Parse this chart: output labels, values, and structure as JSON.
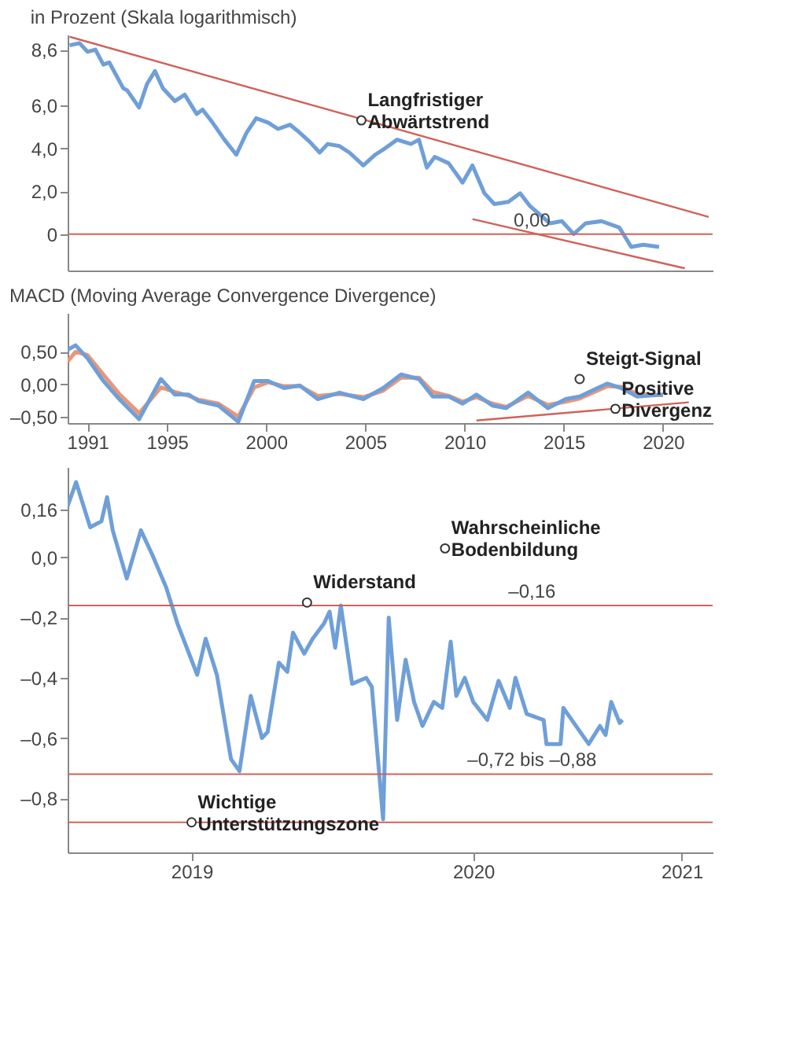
{
  "chart_data": [
    {
      "type": "line",
      "title": "in Prozent (Skala logarithmisch)",
      "xlim": [
        1990,
        2022.5
      ],
      "ylim": [
        -1.7,
        9.3
      ],
      "yticks": [
        {
          "value": 8.6,
          "label": "8,6"
        },
        {
          "value": 6,
          "label": "6,0"
        },
        {
          "value": 4,
          "label": "4,0"
        },
        {
          "value": 2,
          "label": "2,0"
        },
        0
      ],
      "tick_labels": "y",
      "marker": "none",
      "line_style": "solid",
      "series": [
        {
          "color": "#6f9fd8",
          "x": [
            1990.1,
            1990.6,
            1991.0,
            1991.4,
            1991.8,
            1992.1,
            1992.8,
            1993.0,
            1993.6,
            1994.0,
            1994.4,
            1994.8,
            1995.4,
            1995.9,
            1996.5,
            1996.8,
            1997.3,
            1997.9,
            1998.5,
            1999.0,
            1999.5,
            2000.1,
            2000.6,
            2001.2,
            2001.6,
            2002.2,
            2002.7,
            2003.1,
            2003.7,
            2004.2,
            2004.9,
            2005.5,
            2006.0,
            2006.6,
            2007.3,
            2007.7,
            2008.1,
            2008.5,
            2009.2,
            2009.9,
            2010.4,
            2011.0,
            2011.5,
            2012.2,
            2012.8,
            2013.3,
            2014.3,
            2014.9,
            2015.5,
            2016.1,
            2016.9,
            2017.8,
            2018.4,
            2019.0,
            2019.8
          ],
          "values": [
            8.8,
            8.9,
            8.5,
            8.6,
            7.9,
            8.0,
            6.8,
            6.7,
            5.9,
            7.0,
            7.6,
            6.8,
            6.2,
            6.5,
            5.6,
            5.8,
            5.2,
            4.4,
            3.7,
            4.7,
            5.4,
            5.2,
            4.9,
            5.1,
            4.8,
            4.3,
            3.8,
            4.2,
            4.1,
            3.8,
            3.2,
            3.7,
            4.0,
            4.4,
            4.2,
            4.4,
            3.1,
            3.6,
            3.3,
            2.4,
            3.2,
            1.9,
            1.4,
            1.5,
            1.9,
            1.3,
            0.5,
            0.6,
            0.0,
            0.5,
            0.6,
            0.3,
            -0.6,
            -0.5,
            -0.6
          ]
        },
        {
          "type": "line",
          "color": "#d0625a",
          "x": [
            1990.1,
            2022.3
          ],
          "values": [
            9.2,
            0.8
          ]
        },
        {
          "type": "line",
          "color": "#d0625a",
          "x": [
            2010.4,
            2021.1
          ],
          "values": [
            0.7,
            -1.6
          ]
        }
      ],
      "ref_lines": [
        {
          "axis": "y",
          "value": 0,
          "label": "0,00",
          "color": "#d0625a"
        }
      ],
      "annotations": [
        {
          "text": "Langfristiger Abwärtstrend",
          "x": 2004.8,
          "y": 5.3
        }
      ]
    },
    {
      "type": "line",
      "title": "MACD (Moving Average Convergence Divergence)",
      "xlim": [
        1990,
        2022.5
      ],
      "ylim": [
        -0.6,
        1.1
      ],
      "xticks": [
        1991,
        1995,
        2000,
        2005,
        2010,
        2015,
        2020
      ],
      "yticks": [
        {
          "value": 0.5,
          "label": "0,50"
        },
        {
          "value": 0,
          "label": "0,00"
        },
        {
          "value": -0.5,
          "label": "–0,50"
        }
      ],
      "marker": "none",
      "line_style": "solid",
      "series": [
        {
          "color": "#e8967a",
          "x": [
            1990.0,
            1990.4,
            1991.0,
            1991.8,
            1992.6,
            1993.6,
            1994.7,
            1995.4,
            1996.1,
            1996.6,
            1997.6,
            1998.6,
            1999.4,
            2000.1,
            2000.9,
            2001.7,
            2002.6,
            2003.7,
            2004.9,
            2005.9,
            2006.8,
            2007.7,
            2008.4,
            2009.2,
            2009.9,
            2010.6,
            2011.4,
            2012.1,
            2013.2,
            2014.2,
            2015.1,
            2015.8,
            2016.7,
            2017.2,
            2017.9,
            2018.7,
            2020.0
          ],
          "values": [
            0.35,
            0.5,
            0.45,
            0.15,
            -0.15,
            -0.45,
            -0.05,
            -0.12,
            -0.18,
            -0.24,
            -0.3,
            -0.5,
            -0.05,
            0.03,
            -0.03,
            -0.03,
            -0.18,
            -0.15,
            -0.2,
            -0.1,
            0.1,
            0.1,
            -0.12,
            -0.18,
            -0.27,
            -0.2,
            -0.3,
            -0.35,
            -0.18,
            -0.32,
            -0.27,
            -0.22,
            -0.1,
            -0.03,
            -0.04,
            -0.15,
            -0.17
          ]
        },
        {
          "color": "#6f9fd8",
          "x": [
            1990.0,
            1990.4,
            1991.0,
            1991.8,
            1992.6,
            1993.6,
            1994.7,
            1995.4,
            1996.1,
            1996.6,
            1997.6,
            1998.6,
            1999.4,
            2000.1,
            2000.9,
            2001.7,
            2002.6,
            2003.7,
            2004.9,
            2005.9,
            2006.8,
            2007.7,
            2008.4,
            2009.2,
            2009.9,
            2010.6,
            2011.4,
            2012.1,
            2013.2,
            2014.2,
            2015.1,
            2015.8,
            2016.7,
            2017.2,
            2017.9,
            2018.7,
            2020.0
          ],
          "values": [
            0.53,
            0.6,
            0.4,
            0.05,
            -0.23,
            -0.54,
            0.08,
            -0.16,
            -0.16,
            -0.26,
            -0.33,
            -0.58,
            0.05,
            0.05,
            -0.06,
            -0.02,
            -0.23,
            -0.13,
            -0.23,
            -0.06,
            0.15,
            0.08,
            -0.19,
            -0.19,
            -0.3,
            -0.16,
            -0.33,
            -0.37,
            -0.13,
            -0.37,
            -0.23,
            -0.19,
            -0.06,
            0.01,
            -0.06,
            -0.19,
            -0.16
          ]
        },
        {
          "type": "line",
          "color": "#d0625a",
          "x": [
            2010.6,
            2021.3
          ],
          "values": [
            -0.56,
            -0.28
          ]
        }
      ],
      "annotations": [
        {
          "text": "Steigt-Signal",
          "x": 2015.8,
          "y": 0.08
        },
        {
          "text": "Positive Divergenz",
          "x": 2017.6,
          "y": -0.38
        }
      ]
    },
    {
      "type": "line",
      "xlim": [
        2019.06,
        2021.35
      ],
      "ylim": [
        -0.98,
        0.3
      ],
      "xticks": [
        {
          "value": 2019.5,
          "label": "2019"
        },
        {
          "value": 2020.5,
          "label": "2020"
        },
        {
          "value": 2021.24,
          "label": "2021"
        }
      ],
      "yticks": [
        {
          "value": 0.16,
          "label": "0,16"
        },
        {
          "value": 0,
          "label": "0,0"
        },
        {
          "value": -0.2,
          "label": "–0,2"
        },
        {
          "value": -0.4,
          "label": "–0,4"
        },
        {
          "value": -0.6,
          "label": "–0,6"
        },
        {
          "value": -0.8,
          "label": "–0,8"
        }
      ],
      "marker": "none",
      "line_style": "solid",
      "series": [
        {
          "color": "#6f9fd8",
          "x": [
            2019.06,
            2019.09,
            2019.14,
            2019.18,
            2019.2,
            2019.22,
            2019.27,
            2019.32,
            2019.36,
            2019.41,
            2019.45,
            2019.52,
            2019.55,
            2019.59,
            2019.64,
            2019.67,
            2019.71,
            2019.75,
            2019.77,
            2019.81,
            2019.84,
            2019.86,
            2019.9,
            2019.93,
            2019.97,
            2019.99,
            2020.01,
            2020.03,
            2020.07,
            2020.12,
            2020.14,
            2020.18,
            2020.2,
            2020.23,
            2020.26,
            2020.29,
            2020.32,
            2020.36,
            2020.39,
            2020.42,
            2020.44,
            2020.47,
            2020.5,
            2020.55,
            2020.59,
            2020.63,
            2020.65,
            2020.69,
            2020.75,
            2020.76,
            2020.81,
            2020.82,
            2020.88,
            2020.91,
            2020.95,
            2020.97,
            2020.99,
            2021.02,
            2021.03
          ],
          "values": [
            0.17,
            0.25,
            0.1,
            0.12,
            0.2,
            0.09,
            -0.07,
            0.09,
            0.01,
            -0.1,
            -0.22,
            -0.39,
            -0.27,
            -0.39,
            -0.67,
            -0.71,
            -0.46,
            -0.6,
            -0.58,
            -0.35,
            -0.38,
            -0.25,
            -0.32,
            -0.27,
            -0.22,
            -0.18,
            -0.3,
            -0.16,
            -0.42,
            -0.4,
            -0.43,
            -0.87,
            -0.2,
            -0.54,
            -0.34,
            -0.48,
            -0.56,
            -0.48,
            -0.5,
            -0.28,
            -0.46,
            -0.4,
            -0.48,
            -0.54,
            -0.41,
            -0.5,
            -0.4,
            -0.52,
            -0.54,
            -0.62,
            -0.62,
            -0.5,
            -0.58,
            -0.62,
            -0.56,
            -0.59,
            -0.48,
            -0.55,
            -0.54
          ]
        }
      ],
      "ref_lines": [
        {
          "axis": "y",
          "value": -0.16,
          "label": "–0,16",
          "color": "#d0625a"
        },
        {
          "axis": "y",
          "value": -0.72,
          "label": "–0,72 bis –0,88",
          "color": "#d0625a"
        },
        {
          "axis": "y",
          "value": -0.88,
          "color": "#d0625a"
        }
      ],
      "annotations": [
        {
          "text": "Widerstand",
          "x": 2019.91,
          "y": -0.15
        },
        {
          "text": "Wahrscheinliche Bodenbildung",
          "x": 2020.4,
          "y": 0.03
        },
        {
          "text": "Wichtige Unterstützungszone",
          "x": 2019.5,
          "y": -0.88
        }
      ]
    }
  ]
}
